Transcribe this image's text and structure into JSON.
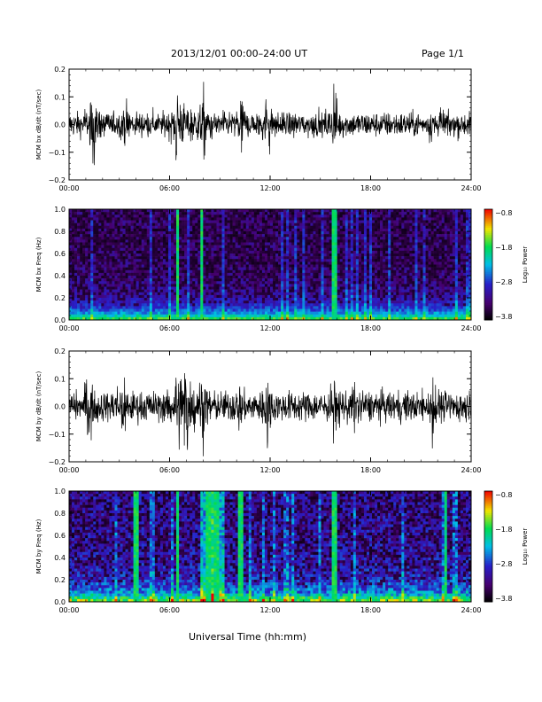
{
  "header": {
    "title": "2013/12/01  00:00–24:00 UT",
    "page": "Page 1/1"
  },
  "x_axis_title": "Universal Time (hh:mm)",
  "chart_data": [
    {
      "type": "line",
      "ylabel": "MCM bx dB/dt (nT/sec)",
      "xlim": [
        0,
        24
      ],
      "ylim": [
        -0.2,
        0.2
      ],
      "yticks": [
        "0.2",
        "0.1",
        "0.0",
        "−0.1",
        "−0.2"
      ],
      "xticks": [
        "00:00",
        "06:00",
        "12:00",
        "18:00",
        "24:00"
      ],
      "series": [
        {
          "values": "dense noise-like dB/dt trace, typical amplitude about ±0.05 nT/s with spikes"
        }
      ],
      "activity": [
        {
          "t": 1.5,
          "a": 0.18
        },
        {
          "t": 6.5,
          "a": 0.2
        },
        {
          "t": 8.0,
          "a": 0.2
        },
        {
          "t": 11.8,
          "a": 0.2
        },
        {
          "t": 15.8,
          "a": 0.2
        },
        {
          "t": 10.3,
          "a": 0.12
        },
        {
          "t": 21.8,
          "a": 0.12
        },
        {
          "t": 3.5,
          "a": 0.12
        }
      ],
      "base_amp": 0.045
    },
    {
      "type": "heatmap",
      "ylabel": "MCM bx Freq (Hz)",
      "xlim": [
        0,
        24
      ],
      "ylim": [
        0,
        1
      ],
      "yticks": [
        "1.0",
        "0.8",
        "0.6",
        "0.4",
        "0.2",
        "0.0"
      ],
      "xticks": [
        "00:00",
        "06:00",
        "12:00",
        "18:00",
        "24:00"
      ],
      "colorbar": {
        "label": "Log₁₀ Power",
        "ticks": [
          "−0.8",
          "−1.8",
          "−2.8",
          "−3.8"
        ],
        "min": -3.8,
        "max": -0.8
      },
      "bright_lines": [
        6.5,
        7.9,
        15.8
      ],
      "level": 0.35
    },
    {
      "type": "line",
      "ylabel": "MCM by dB/dt (nT/sec)",
      "xlim": [
        0,
        24
      ],
      "ylim": [
        -0.2,
        0.2
      ],
      "yticks": [
        "0.2",
        "0.1",
        "0.0",
        "−0.1",
        "−0.2"
      ],
      "xticks": [
        "00:00",
        "06:00",
        "12:00",
        "18:00",
        "24:00"
      ],
      "series": [
        {
          "values": "dense noise-like dB/dt trace, typical amplitude about ±0.06 nT/s with spikes"
        }
      ],
      "activity": [
        {
          "t": 1.2,
          "a": 0.2
        },
        {
          "t": 3.2,
          "a": 0.2
        },
        {
          "t": 6.5,
          "a": 0.2
        },
        {
          "t": 7.0,
          "a": 0.2
        },
        {
          "t": 8.0,
          "a": 0.2
        },
        {
          "t": 11.8,
          "a": 0.2
        },
        {
          "t": 15.8,
          "a": 0.2
        },
        {
          "t": 21.7,
          "a": 0.2
        },
        {
          "t": 17.0,
          "a": 0.14
        },
        {
          "t": 10.2,
          "a": 0.12
        }
      ],
      "base_amp": 0.055
    },
    {
      "type": "heatmap",
      "ylabel": "MCM by Freq (Hz)",
      "xlim": [
        0,
        24
      ],
      "ylim": [
        0,
        1
      ],
      "yticks": [
        "1.0",
        "0.8",
        "0.6",
        "0.4",
        "0.2",
        "0.0"
      ],
      "xticks": [
        "00:00",
        "06:00",
        "12:00",
        "18:00",
        "24:00"
      ],
      "colorbar": {
        "label": "Log₁₀ Power",
        "ticks": [
          "−0.8",
          "−1.8",
          "−2.8",
          "−3.8"
        ],
        "min": -3.8,
        "max": -0.8
      },
      "bright_lines": [
        4.0,
        6.5,
        8.3,
        8.8,
        10.2,
        15.8,
        22.5
      ],
      "level": 0.6
    }
  ]
}
